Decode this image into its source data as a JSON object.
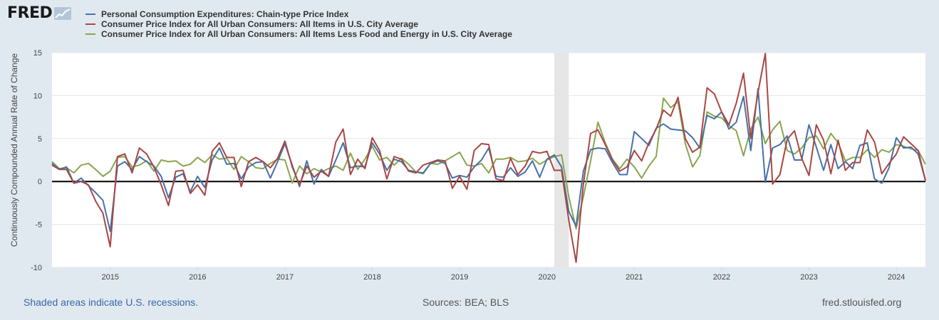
{
  "header": {
    "logo_text": "FRED",
    "logo_icon": "chart-trend-icon"
  },
  "footer": {
    "recession_note": "Shaded areas indicate U.S. recessions.",
    "sources": "Sources: BEA; BLS",
    "site": "fred.stlouisfed.org"
  },
  "chart_data": {
    "type": "line",
    "ylabel": "Continuously Compounded Annual Rate of Change",
    "xlabel": "",
    "ylim": [
      -10,
      15
    ],
    "yticks": [
      -10,
      -5,
      0,
      5,
      10,
      15
    ],
    "ytick_labels": [
      "-10",
      "-5",
      "0",
      "5",
      "10",
      "15"
    ],
    "x_start": "2014-05",
    "x_end": "2024-05",
    "x_frequency": "monthly",
    "xtick_labels": [
      "2015",
      "2016",
      "2017",
      "2018",
      "2019",
      "2020",
      "2021",
      "2022",
      "2023",
      "2024"
    ],
    "grid": "horizontal",
    "zero_line": true,
    "recessions": [
      {
        "start": "2020-02",
        "end": "2020-04"
      }
    ],
    "legend_position": "top-left",
    "series": [
      {
        "name": "Personal Consumption Expenditures: Chain-type Price Index",
        "color": "#4572a7",
        "values": [
          2.1,
          1.4,
          1.7,
          -0.2,
          0.4,
          -0.5,
          -1.3,
          -2.2,
          -5.8,
          1.8,
          2.3,
          1.4,
          2.9,
          2.3,
          1.8,
          0.6,
          -1.9,
          0.5,
          0.9,
          -1.2,
          0.6,
          -0.7,
          2.5,
          3.9,
          2.0,
          2.1,
          0.3,
          1.7,
          2.2,
          2.3,
          0.4,
          2.3,
          4.4,
          1.9,
          -0.6,
          2.4,
          -0.3,
          1.4,
          0.6,
          2.5,
          4.5,
          1.6,
          1.8,
          1.7,
          4.5,
          3.2,
          1.3,
          2.6,
          2.3,
          1.3,
          1.1,
          1.0,
          2.1,
          2.4,
          2.1,
          0.4,
          0.7,
          0.5,
          1.7,
          2.5,
          3.9,
          0.6,
          0.5,
          1.6,
          0.6,
          1.1,
          2.4,
          0.5,
          2.6,
          3.1,
          1.7,
          -3.5,
          -5.2,
          1.2,
          3.7,
          3.9,
          3.8,
          2.2,
          0.8,
          0.8,
          5.8,
          5.0,
          4.2,
          6.2,
          6.7,
          6.1,
          6.0,
          5.9,
          5.1,
          3.9,
          7.7,
          7.3,
          8.1,
          6.1,
          6.9,
          9.9,
          3.6,
          10.8,
          -0.1,
          3.9,
          4.3,
          5.3,
          2.5,
          2.5,
          6.6,
          4.0,
          1.3,
          4.3,
          1.5,
          2.3,
          1.5,
          4.2,
          4.5,
          0.3,
          -0.2,
          1.6,
          5.1,
          3.9,
          4.0,
          3.2,
          0.1
        ]
      },
      {
        "name": "Consumer Price Index for All Urban Consumers: All Items in U.S. City Average",
        "color": "#aa4643",
        "values": [
          1.9,
          1.4,
          1.4,
          -0.2,
          0.0,
          -0.4,
          -2.3,
          -3.7,
          -7.6,
          2.9,
          3.2,
          1.0,
          3.9,
          3.2,
          1.7,
          -0.4,
          -2.8,
          1.2,
          1.3,
          -1.4,
          -0.4,
          -1.6,
          3.5,
          4.5,
          2.8,
          2.8,
          -0.6,
          2.3,
          2.8,
          2.3,
          1.6,
          2.7,
          4.7,
          1.7,
          -0.4,
          1.8,
          0.5,
          1.2,
          0.6,
          4.6,
          6.1,
          0.8,
          2.6,
          1.5,
          5.1,
          3.6,
          0.3,
          2.9,
          2.6,
          1.2,
          1.0,
          1.9,
          2.2,
          2.5,
          2.4,
          -0.8,
          0.6,
          -0.9,
          3.6,
          4.4,
          4.3,
          0.3,
          0.1,
          2.7,
          0.8,
          1.8,
          3.5,
          3.3,
          3.5,
          1.3,
          1.3,
          -4.5,
          -9.4,
          -0.3,
          5.6,
          6.0,
          4.3,
          2.5,
          1.2,
          1.7,
          3.6,
          2.4,
          4.5,
          6.1,
          8.3,
          7.6,
          9.8,
          5.0,
          3.4,
          4.0,
          10.9,
          10.2,
          8.1,
          6.6,
          9.1,
          12.6,
          5.0,
          10.4,
          14.9,
          -0.3,
          0.8,
          4.9,
          5.9,
          2.7,
          0.7,
          6.6,
          4.8,
          0.9,
          4.8,
          1.3,
          2.2,
          2.2,
          6.0,
          4.6,
          0.9,
          2.1,
          3.2,
          5.2,
          4.4,
          3.6,
          0.1
        ]
      },
      {
        "name": "Consumer Price Index for All Urban Consumers: All Items Less Food and Energy in U.S. City Average",
        "color": "#89a54e",
        "values": [
          2.3,
          1.5,
          1.6,
          1.0,
          1.9,
          2.1,
          1.4,
          0.6,
          1.2,
          2.8,
          2.9,
          1.7,
          1.9,
          2.4,
          1.2,
          2.5,
          2.3,
          2.4,
          1.8,
          2.0,
          2.8,
          2.2,
          3.1,
          2.6,
          2.7,
          1.4,
          2.9,
          2.3,
          1.6,
          1.5,
          2.1,
          2.6,
          2.5,
          -0.2,
          1.8,
          0.9,
          1.5,
          1.1,
          1.5,
          1.8,
          1.3,
          3.3,
          1.4,
          2.6,
          4.1,
          2.5,
          2.8,
          1.9,
          2.7,
          2.0,
          1.1,
          0.9,
          2.1,
          2.0,
          2.4,
          2.9,
          3.4,
          1.9,
          1.8,
          2.1,
          1.0,
          2.6,
          2.6,
          2.8,
          2.3,
          2.4,
          2.7,
          2.0,
          2.5,
          2.9,
          3.1,
          -1.8,
          -5.5,
          -1.8,
          2.4,
          6.9,
          4.5,
          2.6,
          1.5,
          2.6,
          1.7,
          0.4,
          1.8,
          2.9,
          9.7,
          8.6,
          9.3,
          4.4,
          1.7,
          3.0,
          8.1,
          7.6,
          7.4,
          6.5,
          5.9,
          3.0,
          6.1,
          7.5,
          4.4,
          6.0,
          7.0,
          3.6,
          3.2,
          3.9,
          5.1,
          5.3,
          3.8,
          5.6,
          4.5,
          2.4,
          2.8,
          2.8,
          3.7,
          2.8,
          3.7,
          3.4,
          4.3,
          4.1,
          3.8,
          3.6,
          2.0
        ]
      }
    ]
  }
}
